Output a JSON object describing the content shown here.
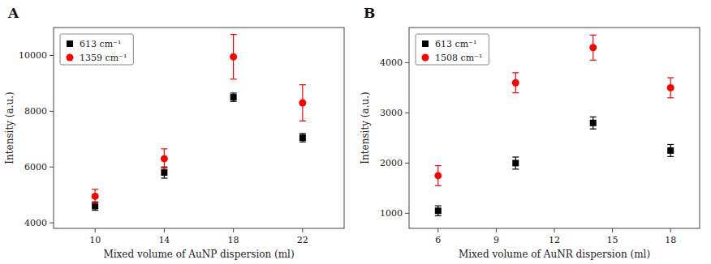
{
  "chart_data": [
    {
      "type": "errorbar",
      "title": "A",
      "x_label": "Mixed volume of AuNP dispersion (ml)",
      "y_label": "Intensity (a.u.)",
      "x": [
        10,
        14,
        18,
        22
      ],
      "series": [
        {
          "name": "613 cm⁻¹",
          "color": "black",
          "marker": "square",
          "values": [
            4600,
            5800,
            8500,
            7050
          ],
          "errors": [
            150,
            200,
            150,
            150
          ]
        },
        {
          "name": "1359 cm⁻¹",
          "color": "red",
          "marker": "circle",
          "values": [
            4950,
            6300,
            9950,
            8300
          ],
          "errors": [
            250,
            350,
            800,
            650
          ]
        }
      ],
      "xlim": [
        7.6,
        24.4
      ],
      "xticks": [
        10,
        14,
        18,
        22
      ],
      "ylim": [
        3800,
        11000
      ],
      "yticks": [
        4000,
        6000,
        8000,
        10000
      ],
      "grid": false,
      "legend": "upper left"
    },
    {
      "type": "errorbar",
      "title": "B",
      "x_label": "Mixed volume of AuNR dispersion (ml)",
      "y_label": "Intensity (a.u.)",
      "x": [
        6,
        10,
        14,
        18
      ],
      "series": [
        {
          "name": "613 cm⁻¹",
          "color": "black",
          "marker": "square",
          "values": [
            1050,
            2000,
            2800,
            2250
          ],
          "errors": [
            100,
            120,
            120,
            120
          ]
        },
        {
          "name": "1508 cm⁻¹",
          "color": "red",
          "marker": "circle",
          "values": [
            1750,
            3600,
            4300,
            3500
          ],
          "errors": [
            200,
            200,
            250,
            200
          ]
        }
      ],
      "xlim": [
        4.5,
        19.5
      ],
      "xticks": [
        6,
        9,
        12,
        15,
        18
      ],
      "ylim": [
        700,
        4700
      ],
      "yticks": [
        1000,
        2000,
        3000,
        4000
      ],
      "grid": false,
      "legend": "upper left"
    }
  ]
}
